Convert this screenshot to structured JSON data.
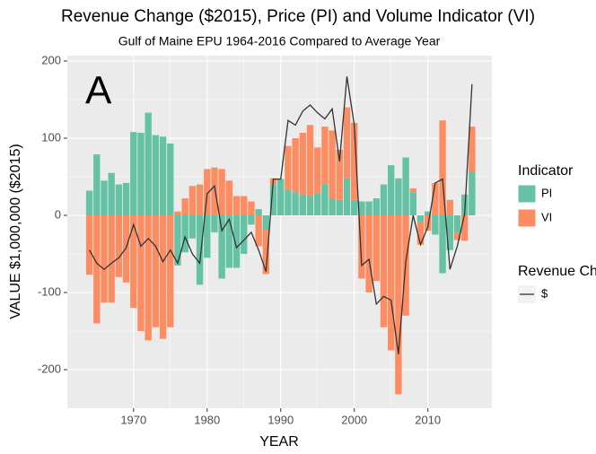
{
  "chart_data": {
    "type": "bar",
    "stacked": true,
    "title": "Revenue Change ($2015), Price (PI) and Volume Indicator (VI)",
    "subtitle": "Gulf of Maine EPU 1964-2016 Compared to Average Year",
    "annotation": "A",
    "x_label": "YEAR",
    "y_label": "VALUE $1,000,000 ($2015)",
    "legend_title": "Indicator",
    "line_legend_title": "Revenue Change",
    "x": [
      1964,
      1965,
      1966,
      1967,
      1968,
      1969,
      1970,
      1971,
      1972,
      1973,
      1974,
      1975,
      1976,
      1977,
      1978,
      1979,
      1980,
      1981,
      1982,
      1983,
      1984,
      1985,
      1986,
      1987,
      1988,
      1989,
      1990,
      1991,
      1992,
      1993,
      1994,
      1995,
      1996,
      1997,
      1998,
      1999,
      2000,
      2001,
      2002,
      2003,
      2004,
      2005,
      2006,
      2007,
      2008,
      2009,
      2010,
      2011,
      2012,
      2013,
      2014,
      2015,
      2016
    ],
    "series": [
      {
        "name": "PI",
        "type": "bar",
        "color": "#66c2a5",
        "values": [
          32,
          79,
          45,
          55,
          40,
          42,
          108,
          107,
          133,
          104,
          102,
          93,
          -65,
          -48,
          -30,
          -90,
          -55,
          -22,
          -82,
          -68,
          -68,
          -50,
          -12,
          8,
          -18,
          40,
          47,
          33,
          30,
          27,
          25,
          28,
          40,
          22,
          20,
          48,
          20,
          18,
          18,
          22,
          40,
          65,
          48,
          75,
          30,
          -8,
          5,
          -25,
          -75,
          -45,
          -22,
          27,
          57
        ]
      },
      {
        "name": "VI",
        "type": "bar",
        "color": "#fc8d62",
        "values": [
          -77,
          -140,
          -113,
          -113,
          -80,
          -87,
          -120,
          -150,
          -162,
          -145,
          -160,
          -145,
          5,
          22,
          38,
          40,
          60,
          62,
          60,
          45,
          25,
          25,
          18,
          -40,
          -58,
          8,
          0,
          57,
          70,
          80,
          92,
          60,
          75,
          88,
          65,
          92,
          100,
          -82,
          -100,
          -85,
          -145,
          -175,
          -232,
          -130,
          5,
          -30,
          -20,
          42,
          123,
          20,
          -10,
          -33,
          58
        ]
      },
      {
        "name": "$",
        "type": "line",
        "color": "#333333",
        "values": [
          -45,
          -62,
          -70,
          -62,
          -55,
          -42,
          -12,
          -40,
          -30,
          -40,
          -60,
          -45,
          -62,
          -28,
          -50,
          -62,
          28,
          38,
          -20,
          -5,
          -42,
          -32,
          -22,
          -45,
          -73,
          47,
          47,
          123,
          117,
          135,
          143,
          133,
          125,
          138,
          70,
          180,
          117,
          -65,
          -57,
          -115,
          -105,
          -110,
          -180,
          -60,
          0,
          -38,
          -15,
          42,
          47,
          -70,
          -40,
          2,
          170
        ]
      }
    ],
    "xlim": [
      1961.0,
      2018.7
    ],
    "xticks": [
      1970,
      1980,
      1990,
      2000,
      2010
    ],
    "ylim": [
      -250,
      207
    ],
    "yticks": [
      -200,
      -100,
      0,
      100,
      200
    ],
    "grid": true,
    "bar_width": 0.9
  }
}
